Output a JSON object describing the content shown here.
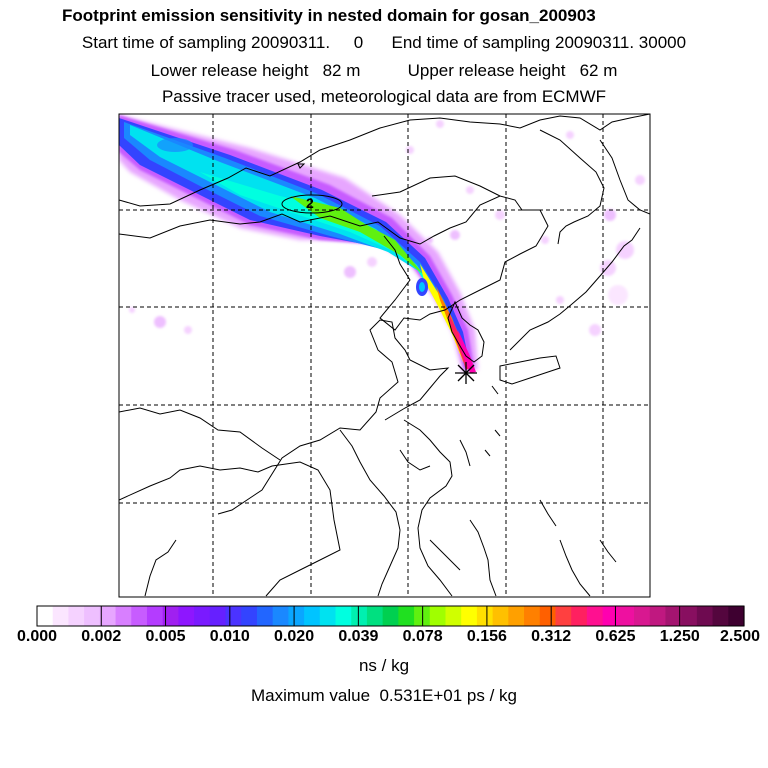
{
  "header": {
    "title": "Footprint emission sensitivity in nested domain for gosan_200903",
    "sampling_line": "Start time of sampling 20090311.     0      End time of sampling 20090311. 30000",
    "height_line": "Lower release height   82 m          Upper release height   62 m",
    "tracer_line": "Passive tracer used, meteorological data are from ECMWF"
  },
  "map": {
    "contour_label": "2"
  },
  "colorbar": {
    "ticks": [
      "0.000",
      "0.002",
      "0.005",
      "0.010",
      "0.020",
      "0.039",
      "0.078",
      "0.156",
      "0.312",
      "0.625",
      "1.250",
      "2.500"
    ],
    "units": "ns / kg",
    "colors": [
      "#ffffff",
      "#fbe6ff",
      "#f5d2ff",
      "#eebfff",
      "#e7a6ff",
      "#d87fff",
      "#c75cff",
      "#b43cff",
      "#a020f0",
      "#8e16ff",
      "#7a1aff",
      "#6620ff",
      "#4b33ff",
      "#3344ff",
      "#2266ff",
      "#1a88ff",
      "#0aa6ff",
      "#00c4ff",
      "#00e2f0",
      "#00ffe0",
      "#00f0b0",
      "#00e080",
      "#00d050",
      "#20e020",
      "#60f010",
      "#a0ff00",
      "#d0ff00",
      "#ffff00",
      "#ffe000",
      "#ffc000",
      "#ffa000",
      "#ff8000",
      "#ff6000",
      "#ff4040",
      "#ff2060",
      "#ff1090",
      "#ff00b0",
      "#ee10a0",
      "#d81890",
      "#c01880",
      "#a41470",
      "#880f60",
      "#6e0a50",
      "#54063e",
      "#3e0030"
    ]
  },
  "max_value_text": "Maximum value  0.531E+01 ps / kg"
}
